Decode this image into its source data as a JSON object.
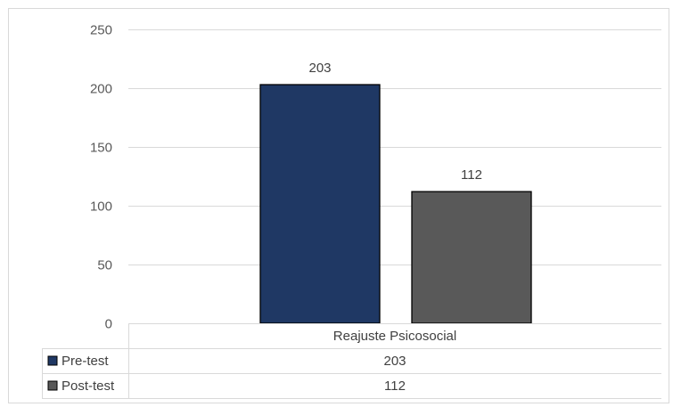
{
  "chart_data": {
    "type": "bar",
    "categories": [
      "Reajuste Psicosocial"
    ],
    "series": [
      {
        "name": "Pre-test",
        "values": [
          203
        ],
        "color": "#1f3864"
      },
      {
        "name": "Post-test",
        "values": [
          112
        ],
        "color": "#595959"
      }
    ],
    "ylim": [
      0,
      250
    ],
    "yticks": [
      0,
      50,
      100,
      150,
      200,
      250
    ],
    "grid": true,
    "data_labels": true,
    "data_table": true,
    "title": "",
    "xlabel": "",
    "ylabel": ""
  }
}
